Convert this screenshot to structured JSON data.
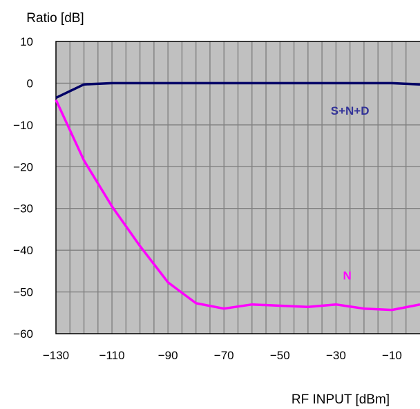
{
  "chart_data": {
    "type": "line",
    "title": "",
    "ylabel": "Ratio [dB]",
    "xlabel": "RF INPUT [dBm]",
    "xlim": [
      -130,
      0
    ],
    "ylim": [
      -60,
      10
    ],
    "xticks": [
      -130,
      -110,
      -90,
      -70,
      -50,
      -30,
      -10
    ],
    "xtick_labels": [
      "−130",
      "−110",
      "−90",
      "−70",
      "−50",
      "−30",
      "−10"
    ],
    "yticks": [
      10,
      0,
      -10,
      -20,
      -30,
      -40,
      -50,
      -60
    ],
    "ytick_labels": [
      "10",
      "0",
      "−10",
      "−20",
      "−30",
      "−40",
      "−50",
      "−60"
    ],
    "grid": true,
    "x": [
      -130,
      -120,
      -110,
      -100,
      -90,
      -80,
      -70,
      -60,
      -50,
      -40,
      -30,
      -20,
      -10,
      0
    ],
    "series": [
      {
        "name": "S+N+D",
        "color": "#000066",
        "label_color": "#333399",
        "values": [
          -3.5,
          -0.3,
          0,
          0,
          0,
          0,
          0,
          0,
          0,
          0,
          0,
          0,
          0,
          -0.3
        ]
      },
      {
        "name": "N",
        "color": "#ff00ff",
        "label_color": "#ff00ff",
        "values": [
          -4,
          -18.5,
          -29.5,
          -39,
          -47.7,
          -52.7,
          -54,
          -53,
          -53.3,
          -53.6,
          -53,
          -54,
          -54.3,
          -53
        ]
      }
    ],
    "series_label_positions": [
      {
        "x": -25,
        "y": -7.5
      },
      {
        "x": -26,
        "y": -47
      }
    ]
  }
}
